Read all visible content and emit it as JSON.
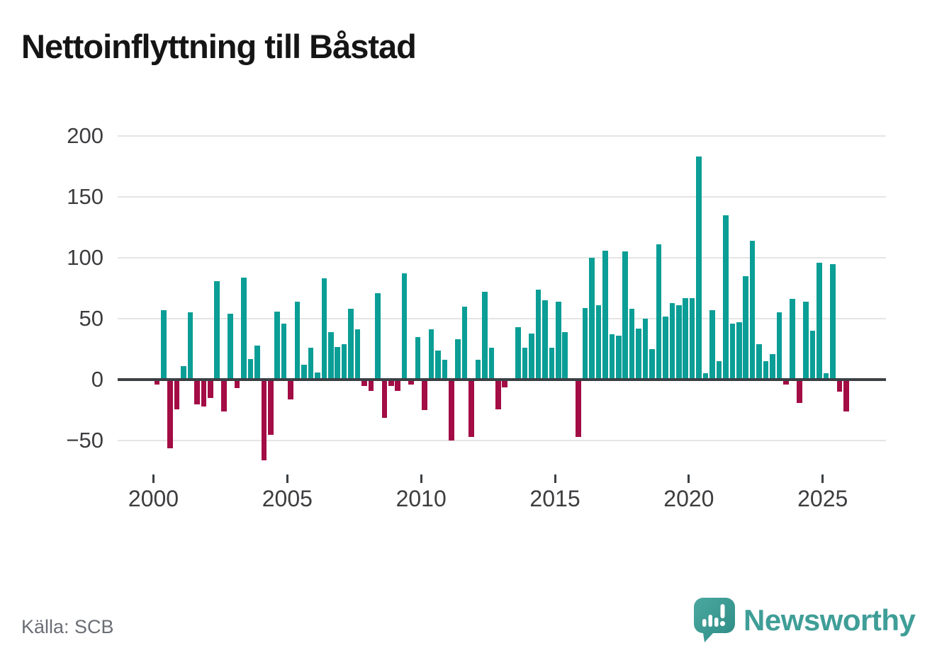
{
  "title": "Nettoinflyttning till Båstad",
  "source": "Källa: SCB",
  "brand": {
    "name": "Newsworthy",
    "color": "#3f9e97"
  },
  "colors": {
    "positive": "#0a9e96",
    "negative": "#a30c45",
    "axis": "#3b4044",
    "grid": "#e5e5e5"
  },
  "chart_data": {
    "type": "bar",
    "title": "Nettoinflyttning till Båstad",
    "xlabel": "",
    "ylabel": "",
    "x_unit": "quarter",
    "start_year": 2000,
    "start_quarter": 1,
    "end_year": 2025,
    "end_quarter": 4,
    "grid": "horizontal",
    "legend": "none",
    "ylim": [
      -70,
      210
    ],
    "y_ticks": [
      {
        "value": 200,
        "label": "200"
      },
      {
        "value": 150,
        "label": "150"
      },
      {
        "value": 100,
        "label": "100"
      },
      {
        "value": 50,
        "label": "50"
      },
      {
        "value": 0,
        "label": "0"
      },
      {
        "value": -50,
        "label": "−50"
      }
    ],
    "x_ticks": [
      {
        "year": 2000,
        "label": "2000"
      },
      {
        "year": 2005,
        "label": "2005"
      },
      {
        "year": 2010,
        "label": "2010"
      },
      {
        "year": 2015,
        "label": "2015"
      },
      {
        "year": 2020,
        "label": "2020"
      },
      {
        "year": 2025,
        "label": "2025"
      }
    ],
    "values": [
      -3,
      57,
      -55,
      -23,
      11,
      55,
      -19,
      -21,
      -14,
      81,
      -25,
      54,
      -6,
      84,
      17,
      28,
      -65,
      -44,
      56,
      46,
      -15,
      64,
      12,
      26,
      6,
      83,
      39,
      27,
      29,
      58,
      41,
      -4,
      -8,
      71,
      -30,
      -4,
      -8,
      87,
      -3,
      35,
      -24,
      41,
      24,
      16,
      -49,
      33,
      60,
      -46,
      16,
      72,
      26,
      -23,
      -5,
      0,
      43,
      26,
      38,
      74,
      65,
      26,
      64,
      39,
      0,
      -46,
      59,
      100,
      61,
      106,
      37,
      36,
      105,
      58,
      42,
      50,
      25,
      111,
      52,
      63,
      61,
      67,
      67,
      183,
      5,
      57,
      15,
      135,
      46,
      47,
      85,
      114,
      29,
      15,
      21,
      55,
      -3,
      66,
      -18,
      64,
      40,
      96,
      5,
      95,
      -9,
      -25
    ]
  }
}
